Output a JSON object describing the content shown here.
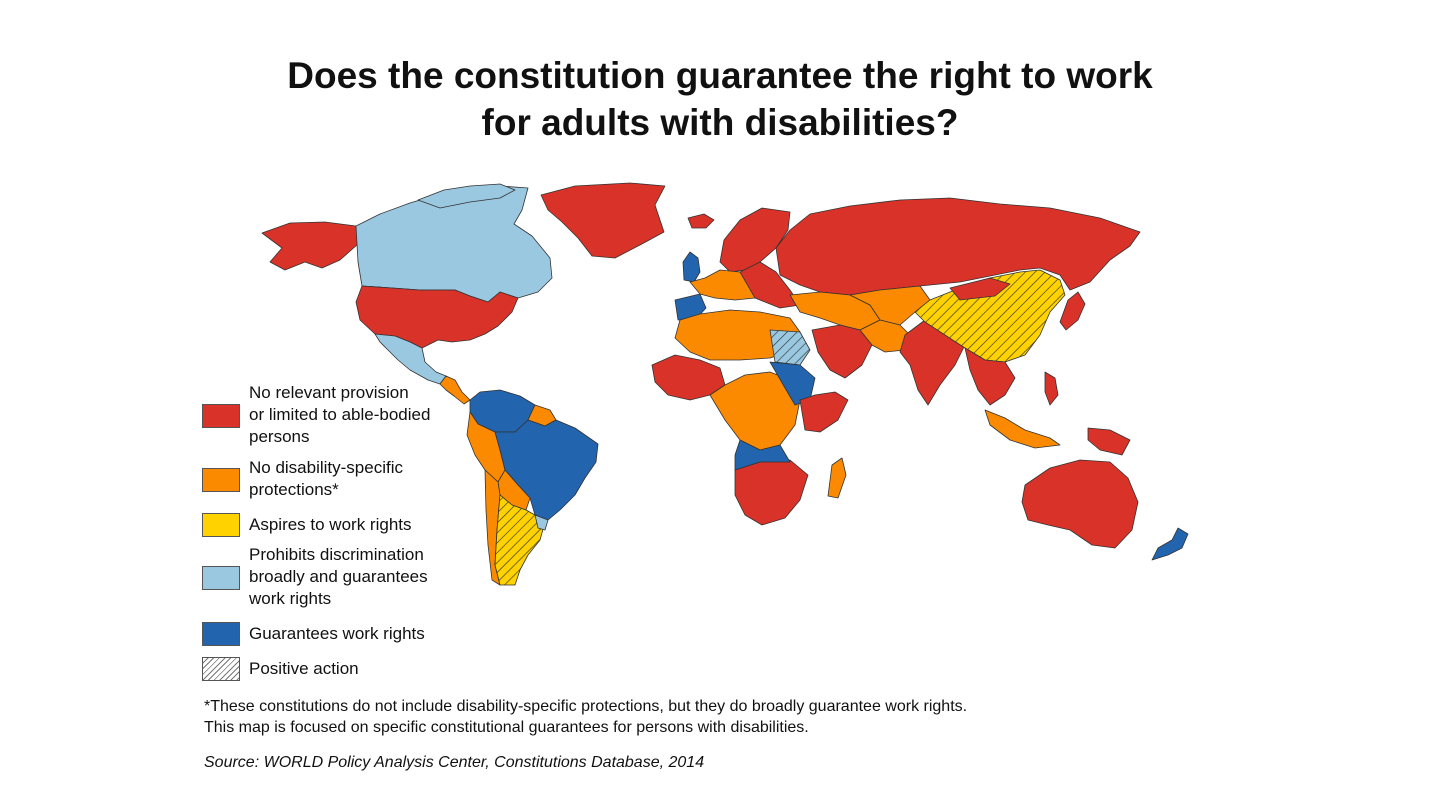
{
  "title_lines": [
    "Does the constitution guarantee the right to work",
    "for adults with disabilities?"
  ],
  "colors": {
    "no_provision": "#d93228",
    "no_disability_specific": "#fb8a00",
    "aspires": "#ffd200",
    "prohibits_discrimination": "#9ac8e1",
    "guarantees": "#2264ad",
    "border": "#333333",
    "ocean": "#ffffff"
  },
  "legend": {
    "items": [
      {
        "key": "no_provision",
        "lines": [
          "No relevant provision",
          "or limited to able-bodied",
          "persons"
        ]
      },
      {
        "key": "no_disability_specific",
        "lines": [
          "No disability-specific",
          "protections*"
        ]
      },
      {
        "key": "aspires",
        "lines": [
          "Aspires to work rights"
        ]
      },
      {
        "key": "prohibits_discrimination",
        "lines": [
          "Prohibits discrimination",
          "broadly and guarantees",
          "work rights"
        ]
      },
      {
        "key": "guarantees",
        "lines": [
          "Guarantees work rights"
        ]
      },
      {
        "key": "positive_action",
        "lines": [
          "Positive action"
        ]
      }
    ]
  },
  "footnote_lines": [
    "*These constitutions do not include disability-specific protections, but they do broadly guarantee work rights.",
    "This map is focused on specific constitutional guarantees for persons with disabilities."
  ],
  "source": "Source: WORLD Policy Analysis Center, Constitutions Database, 2014"
}
